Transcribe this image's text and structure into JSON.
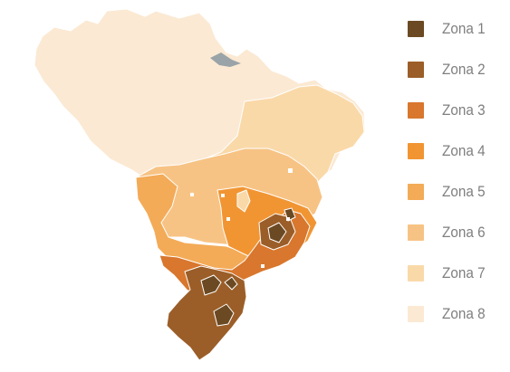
{
  "map": {
    "region": "Brazil",
    "legend": [
      {
        "label": "Zona 1",
        "color": "#6b4a23"
      },
      {
        "label": "Zona 2",
        "color": "#9b5e28"
      },
      {
        "label": "Zona 3",
        "color": "#d8772d"
      },
      {
        "label": "Zona 4",
        "color": "#f19533"
      },
      {
        "label": "Zona 5",
        "color": "#f3ab57"
      },
      {
        "label": "Zona 6",
        "color": "#f7c384"
      },
      {
        "label": "Zona 7",
        "color": "#fad9a9"
      },
      {
        "label": "Zona 8",
        "color": "#fbe9d3"
      }
    ],
    "colors": {
      "outline": "#ffffff",
      "water": "#9aa3a8"
    }
  }
}
